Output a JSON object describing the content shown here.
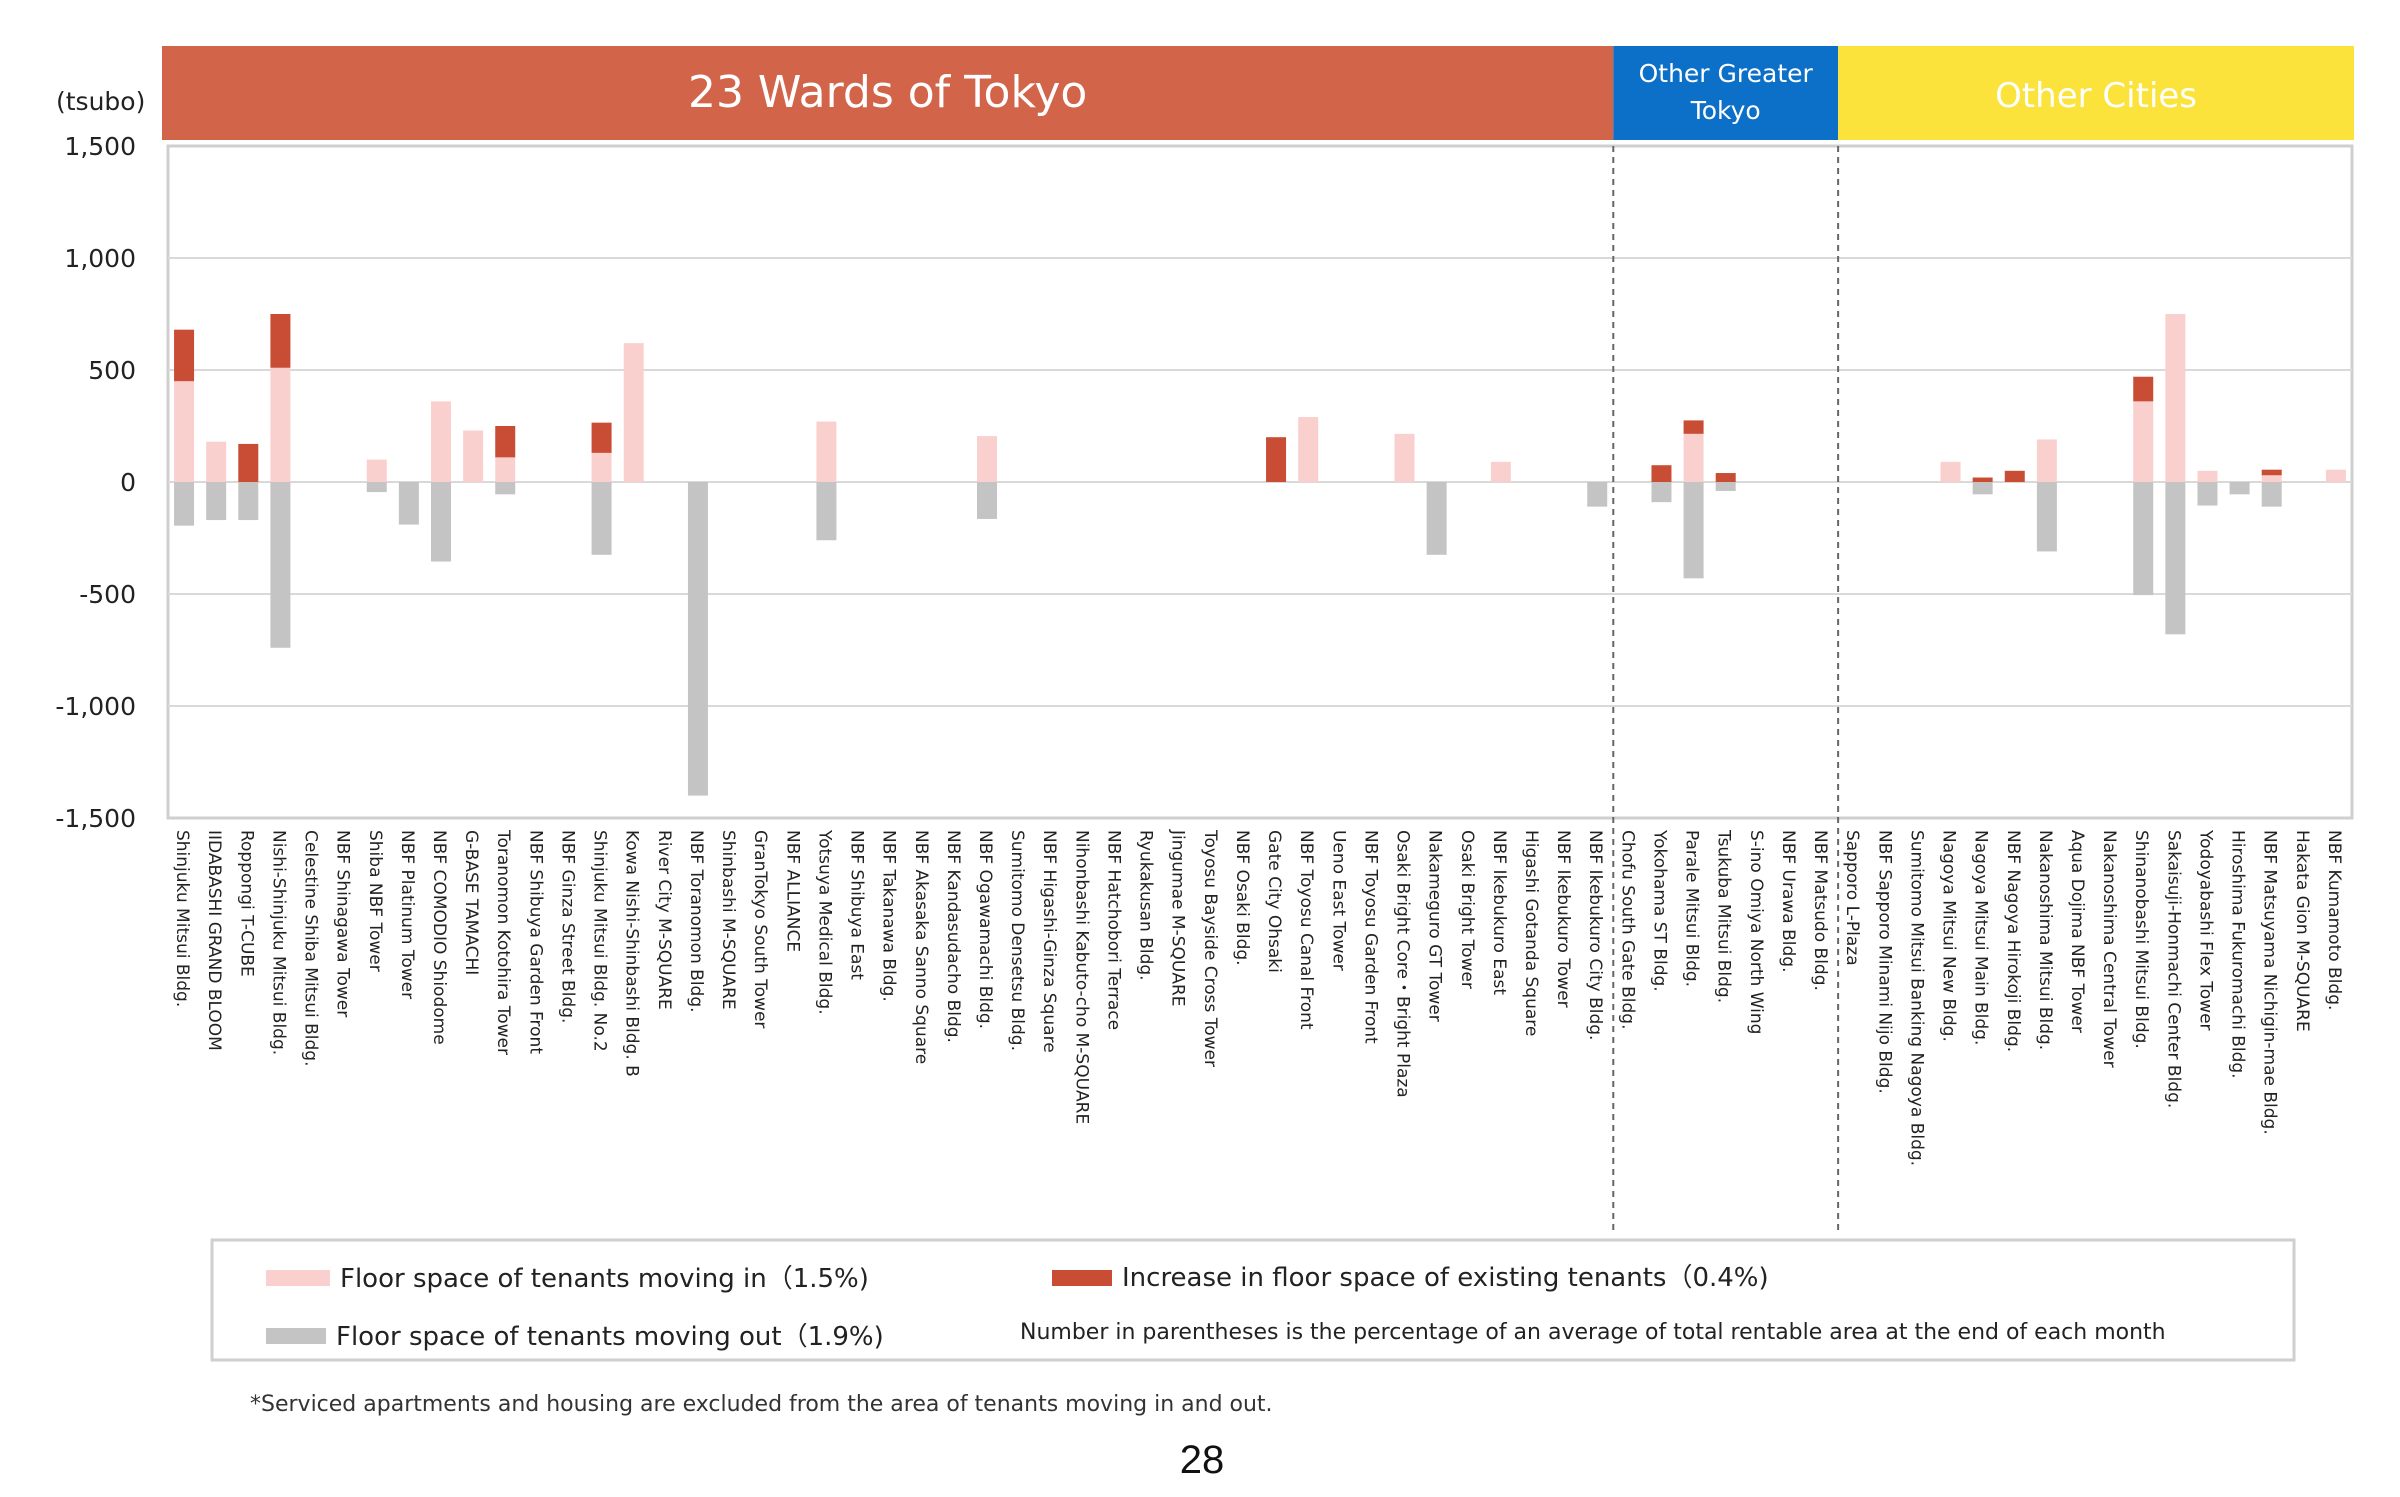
{
  "chart_data": {
    "type": "bar",
    "stacked": true,
    "unit_label": "(tsubo)",
    "ylim": [
      -1500,
      1500
    ],
    "yticks": [
      1500,
      1000,
      500,
      0,
      -500,
      -1000,
      -1500
    ],
    "ytick_labels": [
      "1,500",
      "1,000",
      "500",
      "0",
      "-500",
      "-1,000",
      "-1,500"
    ],
    "grid": true,
    "groups": [
      {
        "label": "23 Wards of Tokyo",
        "color": "#D2644A",
        "text_color": "#ffffff",
        "start": 0,
        "end": 45
      },
      {
        "label_lines": [
          "Other Greater",
          "Tokyo"
        ],
        "color": "#0C6FC8",
        "text_color": "#ffffff",
        "start": 45,
        "end": 52
      },
      {
        "label": "Other Cities",
        "color": "#FBE33B",
        "text_color": "#1a1a1a",
        "start": 52,
        "end": 68
      }
    ],
    "categories": [
      "Shinjuku Mitsui Bldg.",
      "IIDABASHI GRAND BLOOM",
      "Roppongi T-CUBE",
      "Nishi-Shinjuku Mitsui Bldg.",
      "Celestine Shiba Mitsui Bldg.",
      "NBF Shinagawa Tower",
      "Shiba NBF Tower",
      "NBF Platinum Tower",
      "NBF COMODIO Shiodome",
      "G-BASE TAMACHI",
      "Toranomon Kotohira Tower",
      "NBF Shibuya Garden Front",
      "NBF Ginza Street Bldg.",
      "Shinjuku Mitsui Bldg. No.2",
      "Kowa Nishi-Shinbashi Bldg. B",
      "River City M-SQUARE",
      "NBF Toranomon Bldg.",
      "Shinbashi M-SQUARE",
      "GranTokyo South Tower",
      "NBF ALLIANCE",
      "Yotsuya Medical Bldg.",
      "NBF Shibuya East",
      "NBF Takanawa Bldg.",
      "NBF Akasaka Sanno Square",
      "NBF Kandasudacho Bldg.",
      "NBF Ogawamachi Bldg.",
      "Sumitomo Densetsu Bldg.",
      "NBF Higashi-Ginza Square",
      "Nihonbashi Kabuto-cho M-SQUARE",
      "NBF Hatchobori Terrace",
      "Ryukakusan Bldg.",
      "Jingumae M-SQUARE",
      "Toyosu Bayside Cross Tower",
      "NBF Osaki Bldg.",
      "Gate City Ohsaki",
      "NBF Toyosu Canal Front",
      "Ueno East Tower",
      "NBF Toyosu Garden Front",
      "Osaki Bright Core・Bright Plaza",
      "Nakameguro GT Tower",
      "Osaki Bright Tower",
      "NBF Ikebukuro East",
      "Higashi Gotanda Square",
      "NBF Ikebukuro Tower",
      "NBF Ikebukuro City Bldg.",
      "Chofu South Gate Bldg.",
      "Yokohama ST Bldg.",
      "Parale Mitsui Bldg.",
      "Tsukuba Mitsui Bldg.",
      "S-ino Omiya North Wing",
      "NBF Urawa Bldg.",
      "NBF Matsudo Bldg.",
      "Sapporo L-Plaza",
      "NBF Sapporo Minami Nijo Bldg.",
      "Sumitomo Mitsui Banking Nagoya Bldg.",
      "Nagoya Mitsui New Bldg.",
      "Nagoya Mitsui Main Bldg.",
      "NBF Nagoya Hirokoji Bldg.",
      "Nakanoshima Mitsui Bldg.",
      "Aqua Dojima NBF Tower",
      "Nakanoshima Central Tower",
      "Shinanobashi Mitsui Bldg.",
      "Sakaisuji-Honmachi Center Bldg.",
      "Yodoyabashi Flex Tower",
      "Hiroshima Fukuromachi Bldg.",
      "NBF Matsuyama Nichigin-mae Bldg.",
      "Hakata Gion M-SQUARE",
      "NBF Kumamoto Bldg."
    ],
    "series": [
      {
        "name": "Floor space of tenants moving in（1.5%)",
        "color": "#FAD0CF",
        "values": [
          450,
          180,
          0,
          510,
          0,
          0,
          100,
          0,
          360,
          230,
          110,
          0,
          0,
          130,
          620,
          0,
          0,
          0,
          0,
          0,
          270,
          0,
          0,
          0,
          0,
          205,
          0,
          0,
          0,
          0,
          0,
          0,
          0,
          0,
          0,
          290,
          0,
          0,
          215,
          0,
          0,
          90,
          0,
          0,
          0,
          0,
          0,
          215,
          0,
          0,
          0,
          0,
          0,
          0,
          0,
          90,
          0,
          0,
          190,
          0,
          0,
          360,
          750,
          50,
          0,
          30,
          0,
          55
        ]
      },
      {
        "name": "Increase in floor space of existing tenants（0.4%)",
        "color": "#C94C34",
        "values": [
          230,
          0,
          170,
          240,
          0,
          0,
          0,
          0,
          0,
          0,
          140,
          0,
          0,
          135,
          0,
          0,
          0,
          0,
          0,
          0,
          0,
          0,
          0,
          0,
          0,
          0,
          0,
          0,
          0,
          0,
          0,
          0,
          0,
          0,
          200,
          0,
          0,
          0,
          0,
          0,
          0,
          0,
          0,
          0,
          0,
          0,
          75,
          60,
          40,
          0,
          0,
          0,
          0,
          0,
          0,
          0,
          20,
          50,
          0,
          0,
          0,
          110,
          0,
          0,
          0,
          25,
          0,
          0
        ]
      },
      {
        "name": "Floor space of tenants moving out（1.9%)",
        "color": "#C4C4C4",
        "values": [
          -195,
          -170,
          -170,
          -740,
          0,
          0,
          -45,
          -190,
          -355,
          0,
          -55,
          0,
          0,
          -325,
          0,
          0,
          -1400,
          0,
          0,
          0,
          -260,
          0,
          0,
          0,
          0,
          -165,
          0,
          0,
          0,
          0,
          0,
          0,
          0,
          0,
          0,
          0,
          0,
          0,
          0,
          -325,
          0,
          0,
          0,
          0,
          -110,
          0,
          -90,
          -430,
          -40,
          0,
          0,
          0,
          0,
          0,
          0,
          0,
          -55,
          0,
          -310,
          0,
          0,
          -505,
          -680,
          -105,
          -55,
          -110,
          0,
          0
        ]
      }
    ],
    "legend_note": "Number in parentheses is the percentage of an average of total rentable area at the end of each month"
  },
  "footnote": "*Serviced apartments and housing are excluded from the area of tenants moving in and out.",
  "page_number": "28"
}
